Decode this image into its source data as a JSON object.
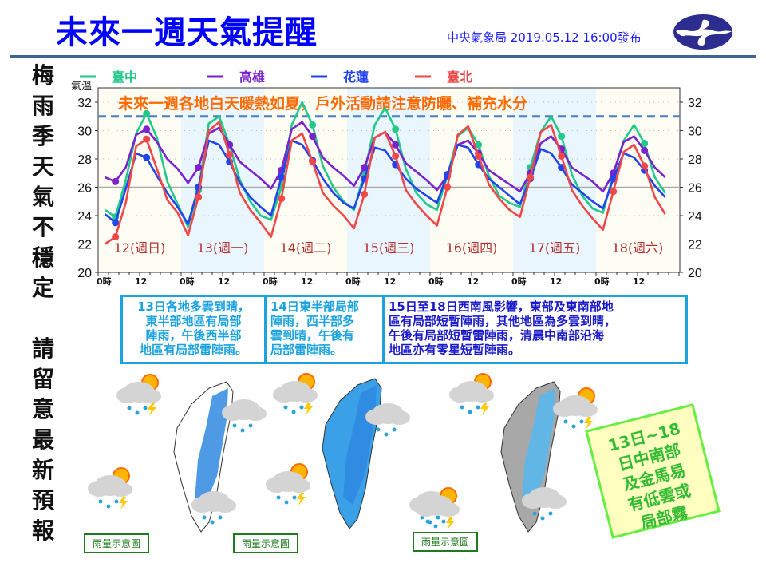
{
  "header": {
    "title": "未來一週天氣提醒",
    "issuer": "中央氣象局 2019.05.12 16:00發布",
    "logo_icon": "cwb-logo-icon"
  },
  "side_banner": {
    "line1": [
      "梅",
      "雨",
      "季",
      "天",
      "氣",
      "不",
      "穩",
      "定"
    ],
    "line2": [
      "請",
      "留",
      "意",
      "最",
      "新",
      "預",
      "報"
    ]
  },
  "chart_data": {
    "type": "line",
    "title": "未來一週各地白天暖熱如夏，戶外活動請注意防曬、補充水分",
    "ylabel": "氣溫",
    "ylim": [
      20,
      32
    ],
    "yticks": [
      20,
      22,
      24,
      26,
      28,
      30,
      32
    ],
    "grid": true,
    "reference_lines": [
      {
        "value": 31,
        "style": "dashed",
        "color": "#4a7fc0"
      },
      {
        "value": 26,
        "style": "solid",
        "color": "#aaaaaa"
      }
    ],
    "legend_position": "top",
    "x_tick_labels": [
      "0時",
      "12",
      "0時",
      "12",
      "0時",
      "12",
      "0時",
      "12",
      "0時",
      "12",
      "0時",
      "12",
      "0時",
      "12"
    ],
    "day_labels": [
      "12(週日)",
      "13(週一)",
      "14(週二)",
      "15(週三)",
      "16(週四)",
      "17(週五)",
      "18(週六)"
    ],
    "x_hours": [
      2,
      5,
      8,
      11,
      14,
      17,
      20,
      23
    ],
    "series": [
      {
        "name": "臺中",
        "color": "#22c98a",
        "values": [
          24.4,
          23.9,
          26.5,
          29.8,
          31.2,
          29.5,
          26.4,
          24.8,
          23.2,
          25.8,
          30.5,
          31.0,
          29.0,
          26.5,
          25.0,
          24.0,
          23.7,
          26.0,
          30.4,
          32.0,
          30.4,
          27.5,
          26.0,
          25.0,
          24.4,
          27.0,
          30.4,
          31.6,
          30.1,
          27.3,
          25.6,
          24.8,
          24.4,
          26.8,
          29.6,
          30.2,
          29.0,
          26.8,
          25.4,
          24.9,
          24.6,
          27.4,
          29.9,
          31.0,
          29.6,
          26.9,
          25.4,
          24.5,
          24.2,
          26.9,
          29.3,
          30.4,
          29.1,
          26.7,
          25.6
        ]
      },
      {
        "name": "高雄",
        "color": "#7b22cc",
        "values": [
          26.7,
          26.4,
          27.4,
          29.7,
          30.1,
          29.2,
          28.0,
          27.3,
          26.3,
          27.4,
          29.8,
          30.2,
          29.0,
          27.8,
          27.2,
          26.6,
          25.9,
          27.2,
          30.1,
          30.6,
          29.6,
          28.1,
          27.4,
          26.8,
          26.1,
          27.4,
          29.5,
          29.9,
          29.0,
          27.7,
          27.1,
          26.5,
          25.8,
          26.8,
          29.0,
          29.3,
          28.4,
          27.2,
          26.7,
          26.2,
          25.7,
          27.0,
          29.1,
          29.6,
          28.7,
          27.4,
          26.9,
          26.4,
          25.7,
          27.0,
          29.2,
          29.6,
          28.6,
          27.4,
          26.7
        ]
      },
      {
        "name": "花蓮",
        "color": "#2244ee",
        "values": [
          24.1,
          23.5,
          25.9,
          28.4,
          28.1,
          26.8,
          25.6,
          24.6,
          23.4,
          26.0,
          29.3,
          29.0,
          27.8,
          26.3,
          25.3,
          24.6,
          24.0,
          26.7,
          29.3,
          29.0,
          27.9,
          26.6,
          25.6,
          24.9,
          24.5,
          26.6,
          28.8,
          28.6,
          27.6,
          26.6,
          25.9,
          25.4,
          24.9,
          26.9,
          29.0,
          28.8,
          27.6,
          26.6,
          26.0,
          25.4,
          24.8,
          26.6,
          28.7,
          28.4,
          27.4,
          26.2,
          25.6,
          25.0,
          24.5,
          26.6,
          28.4,
          28.1,
          27.2,
          26.1,
          25.3
        ]
      },
      {
        "name": "臺北",
        "color": "#f04848",
        "values": [
          22.0,
          22.5,
          24.9,
          28.9,
          29.4,
          27.3,
          25.1,
          24.2,
          22.6,
          25.3,
          30.0,
          30.6,
          28.3,
          25.6,
          24.4,
          23.5,
          22.5,
          25.2,
          29.3,
          29.8,
          27.8,
          25.6,
          24.7,
          24.0,
          23.1,
          25.5,
          29.5,
          29.9,
          28.2,
          25.8,
          24.8,
          24.0,
          23.3,
          26.0,
          29.7,
          30.3,
          28.2,
          26.2,
          25.2,
          24.4,
          23.9,
          26.7,
          29.9,
          30.4,
          28.2,
          25.8,
          24.7,
          23.8,
          23.0,
          25.7,
          28.5,
          29.0,
          27.5,
          25.3,
          24.1
        ]
      }
    ]
  },
  "notes": [
    {
      "lines": [
        "13日各地多雲到晴，",
        "東半部地區有局部",
        "陣雨，午後西半部",
        "地區有局部雷陣雨。"
      ]
    },
    {
      "lines": [
        "14日東半部局部",
        "陣雨，西半部多",
        "雲到晴，午後有",
        "局部雷陣雨。"
      ]
    },
    {
      "lines": [
        "15日至18日西南風影響，東部及東南部地",
        "區有局部短暫陣雨，其他地區為多雲到晴，",
        "午後有局部短暫雷陣雨，清晨中南部沿海",
        "地區亦有零星短暫陣雨。"
      ]
    }
  ],
  "maps": [
    {
      "label": "雨量示意圖"
    },
    {
      "label": "雨量示意圖"
    },
    {
      "label": "雨量示意圖"
    }
  ],
  "fog_note": {
    "lines": [
      "13日~18",
      "日中南部",
      "及金馬易",
      "有低雲或",
      "局部霧"
    ]
  },
  "colors": {
    "title": "#0000ff",
    "rule": "#3d6593",
    "note_border": "#1aa3df",
    "alert_text": "#ff6a00",
    "day_label": "#b03030"
  }
}
